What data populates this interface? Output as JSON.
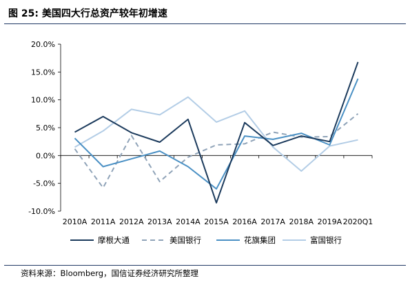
{
  "title": "图 25:  美国四大行总资产较年初增速",
  "source": "资料来源：Bloomberg，国信证券经济研究所整理",
  "chart_data": {
    "type": "line",
    "title": "图 25:  美国四大行总资产较年初增速",
    "xlabel": "",
    "ylabel": "",
    "categories": [
      "2010A",
      "2011A",
      "2012A",
      "2013A",
      "2014A",
      "2015A",
      "2016A",
      "2017A",
      "2018A",
      "2019A",
      "2020Q1"
    ],
    "yticks": [
      "-10.0%",
      "-5.0%",
      "0.0%",
      "5.0%",
      "10.0%",
      "15.0%",
      "20.0%"
    ],
    "ylim": [
      -10,
      20
    ],
    "grid": false,
    "legend_position": "bottom",
    "series": [
      {
        "name": "摩根大通",
        "color": "#1b3a5c",
        "dash": "solid",
        "values": [
          4.2,
          7.0,
          4.1,
          2.4,
          6.5,
          -8.5,
          5.9,
          1.8,
          3.5,
          2.5,
          16.8
        ]
      },
      {
        "name": "美国银行",
        "color": "#8fa3b8",
        "dash": "dashed",
        "values": [
          1.2,
          -5.8,
          3.6,
          -4.7,
          -0.3,
          1.9,
          2.1,
          4.2,
          3.3,
          3.4,
          7.5
        ]
      },
      {
        "name": "花旗集团",
        "color": "#4a90c4",
        "dash": "solid",
        "values": [
          3.1,
          -2.0,
          -0.6,
          0.8,
          -2.0,
          -6.0,
          3.5,
          2.9,
          4.0,
          1.9,
          13.8
        ]
      },
      {
        "name": "富国银行",
        "color": "#b3cde6",
        "dash": "solid",
        "values": [
          1.5,
          4.4,
          8.3,
          7.3,
          10.5,
          6.0,
          8.0,
          1.5,
          -2.8,
          1.7,
          2.8
        ]
      }
    ]
  }
}
